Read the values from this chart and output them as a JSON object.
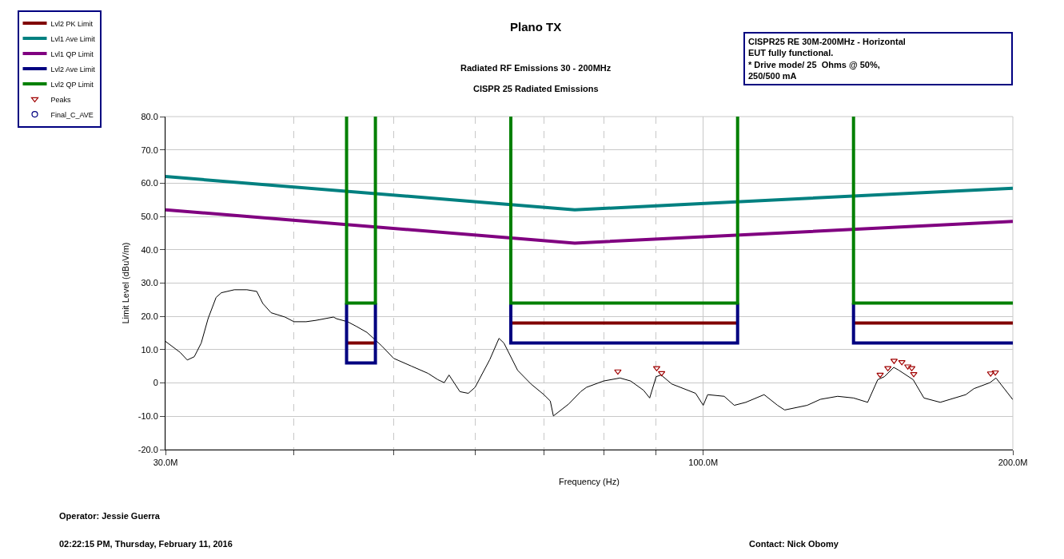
{
  "chart_data": {
    "type": "line",
    "title": "Plano TX",
    "subtitle": "Radiated RF Emissions 30 - 200MHz\nCISPR 25 Radiated Emissions",
    "xlabel": "Frequency (Hz)",
    "ylabel": "Limit Level (dBuV/m)",
    "annotations": [
      "CISPR25 RE 30M-200MHz - Horizontal\nEUT fully functional.\n* Drive mode/ 25  Ohms @ 50%,\n250/500 mA",
      "Operator: Jessie Guerra",
      "02:22:15 PM, Thursday, February 11, 2016",
      "Contact: Nick Obomy"
    ],
    "log": "x",
    "grid": true,
    "legend": "top left",
    "line_style": "solid",
    "xlim": [
      30,
      200
    ],
    "xticks": [
      {
        "value": 30,
        "label": "30.0M"
      },
      {
        "value": 40,
        "label": null
      },
      {
        "value": 50,
        "label": null
      },
      {
        "value": 60,
        "label": null
      },
      {
        "value": 70,
        "label": null
      },
      {
        "value": 80,
        "label": null
      },
      {
        "value": 90,
        "label": null
      },
      {
        "value": 100,
        "label": "100.0M"
      },
      {
        "value": 200,
        "label": "200.0M"
      }
    ],
    "ylim": [
      -20,
      80
    ],
    "yticks": [
      {
        "value": -20,
        "label": "-20.0"
      },
      {
        "value": -10,
        "label": "-10.0"
      },
      0,
      {
        "value": 10,
        "label": "10.0"
      },
      {
        "value": 20,
        "label": "20.0"
      },
      {
        "value": 30,
        "label": "30.0"
      },
      {
        "value": 40,
        "label": "40.0"
      },
      {
        "value": 50,
        "label": "50.0"
      },
      {
        "value": 60,
        "label": "60.0"
      },
      {
        "value": 70,
        "label": "70.0"
      },
      {
        "value": 80,
        "label": "80.0"
      }
    ],
    "series": [
      {
        "color": "#000000",
        "marker": "none",
        "x": [
          30,
          31,
          31.5,
          32,
          32.5,
          33,
          33.6,
          34,
          35,
          36,
          36.8,
          37.3,
          38,
          39.2,
          40,
          41.1,
          42,
          43.7,
          44,
          45.1,
          46,
          47.1,
          48,
          48.7,
          50,
          52,
          54,
          55.2,
          56,
          56.6,
          58,
          59.1,
          60,
          62,
          63.3,
          64,
          66,
          68,
          70,
          71,
          71.5,
          74,
          76,
          77,
          80,
          83,
          85,
          87.5,
          88.7,
          90,
          91,
          93.2,
          95,
          98.3,
          100,
          101,
          104.8,
          107.2,
          110,
          114.6,
          118.1,
          120,
          126.2,
          130,
          135.1,
          140,
          144.5,
          147.8,
          150,
          153.2,
          155,
          160,
          163.9,
          170,
          180,
          183.3,
          190,
          192.6,
          200
        ],
        "values": [
          12.5,
          9.2,
          6.9,
          7.9,
          12,
          19.3,
          25.7,
          27.1,
          28,
          28,
          27.5,
          23.9,
          21.1,
          19.8,
          18.4,
          18.4,
          18.8,
          19.8,
          19.3,
          18.4,
          17,
          15.2,
          12.9,
          11.1,
          7.4,
          5.1,
          2.9,
          1,
          0.1,
          2.4,
          -2.6,
          -3.1,
          -1.3,
          7,
          13.4,
          12,
          3.8,
          -0.3,
          -3.5,
          -5.4,
          -9.9,
          -6.3,
          -2.6,
          -1.3,
          0.6,
          1.5,
          0.6,
          -2.2,
          -4.5,
          1.9,
          2.4,
          -0.3,
          -1.3,
          -3.1,
          -6.7,
          -3.5,
          -4,
          -6.7,
          -5.8,
          -3.5,
          -6.7,
          -8.1,
          -6.7,
          -4.9,
          -4,
          -4.5,
          -5.8,
          1,
          1.9,
          4.7,
          3.8,
          1,
          -4.5,
          -5.8,
          -3.5,
          -1.7,
          0.1,
          1.5,
          -5
        ]
      },
      {
        "name": "Lvl2 PK Limit",
        "color": "#800000",
        "marker": "none",
        "x": [
          45,
          48,
          null,
          65,
          108,
          null,
          140,
          200
        ],
        "values": [
          12,
          12,
          null,
          18,
          18,
          null,
          18,
          18
        ]
      },
      {
        "name": "Lvl1 Ave Limit",
        "color": "#008080",
        "marker": "none",
        "x": [
          30,
          75,
          200
        ],
        "values": [
          62,
          52,
          58.5
        ]
      },
      {
        "name": "Lvl1 QP Limit",
        "color": "#800080",
        "marker": "none",
        "x": [
          30,
          75,
          200
        ],
        "values": [
          52,
          42,
          48.5
        ]
      },
      {
        "name": "Lvl2 Ave Limit",
        "color": "#000080",
        "marker": "none",
        "x": [
          45,
          45,
          48,
          48,
          null,
          65,
          65,
          108,
          108,
          null,
          140,
          140,
          200
        ],
        "values": [
          24,
          6,
          6,
          24,
          null,
          24,
          12,
          12,
          24,
          null,
          24,
          12,
          12
        ]
      },
      {
        "name": "Lvl2 QP Limit",
        "color": "#008000",
        "marker": "none",
        "x": [
          45,
          45,
          48,
          48,
          null,
          65,
          65,
          108,
          108,
          null,
          140,
          140,
          200
        ],
        "values": [
          80,
          24,
          24,
          80,
          null,
          80,
          24,
          24,
          80,
          null,
          80,
          24,
          24
        ]
      },
      {
        "name": "Peaks",
        "type": "scatter",
        "color": "#a00000",
        "marker": "triangle",
        "x": [
          82.6,
          90.1,
          91.1,
          148.6,
          151.2,
          153.3,
          156,
          158.1,
          159.5,
          160.2,
          190.3,
          192.3
        ],
        "values": [
          3.5,
          4.5,
          3,
          2.5,
          4.5,
          6.7,
          6.3,
          5,
          4.5,
          2.7,
          2.9,
          3.2
        ]
      },
      {
        "name": "Final_C_AVE",
        "type": "scatter",
        "color": "#000080",
        "marker": "circle"
      }
    ]
  }
}
